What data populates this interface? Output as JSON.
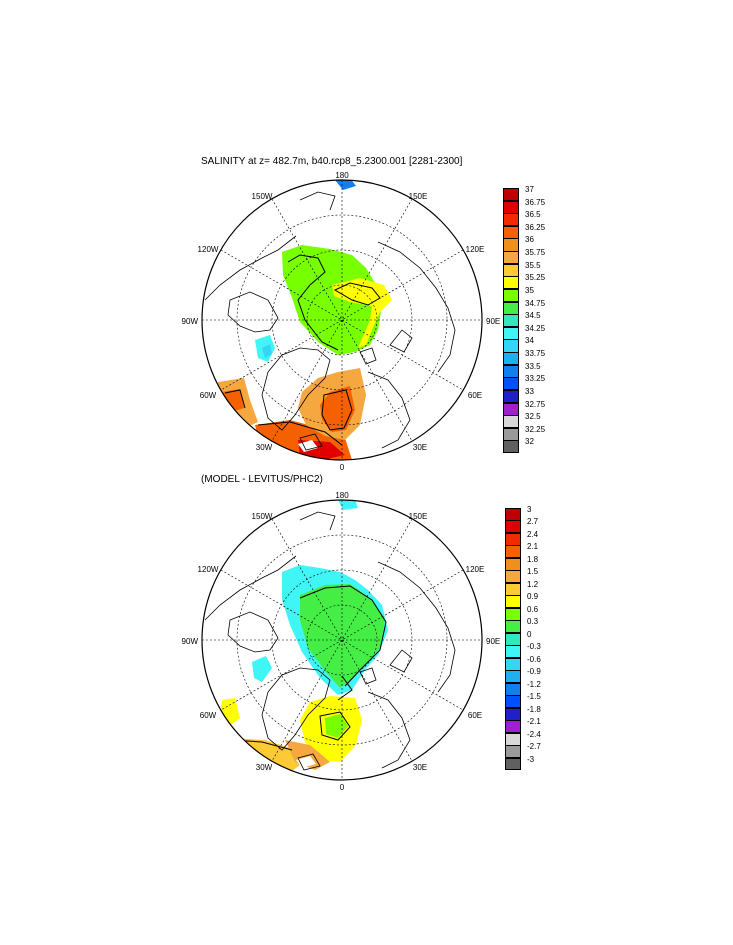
{
  "panels": [
    {
      "title": "SALINITY at z= 482.7m, b40.rcp8_5.2300.001 [2281-2300]",
      "lon_labels": [
        "180",
        "150E",
        "120E",
        "90E",
        "60E",
        "30E",
        "0",
        "30W",
        "60W",
        "90W",
        "120W",
        "150W"
      ],
      "colorbar": {
        "labels": [
          "37",
          "36.75",
          "36.5",
          "36.25",
          "36",
          "35.75",
          "35.5",
          "35.25",
          "35",
          "34.75",
          "34.5",
          "34.25",
          "34",
          "33.75",
          "33.5",
          "33.25",
          "33",
          "32.75",
          "32.5",
          "32.25",
          "32"
        ],
        "colors": [
          "#c00000",
          "#e00000",
          "#f22a00",
          "#f56000",
          "#f0901c",
          "#f5a840",
          "#fdc935",
          "#ffff00",
          "#78ff00",
          "#44ee44",
          "#33e8c0",
          "#40f5f5",
          "#35d5f5",
          "#20b0f0",
          "#1080f0",
          "#0050ff",
          "#2020c8",
          "#9f20d0",
          "#d8d8d8",
          "#9a9a9a",
          "#606060"
        ]
      }
    },
    {
      "title": "(MODEL - LEVITUS/PHC2)",
      "lon_labels": [
        "180",
        "150E",
        "120E",
        "90E",
        "60E",
        "30E",
        "0",
        "30W",
        "60W",
        "90W",
        "120W",
        "150W"
      ],
      "colorbar": {
        "labels": [
          "3",
          "2.7",
          "2.4",
          "2.1",
          "1.8",
          "1.5",
          "1.2",
          "0.9",
          "0.6",
          "0.3",
          "0",
          "-0.3",
          "-0.6",
          "-0.9",
          "-1.2",
          "-1.5",
          "-1.8",
          "-2.1",
          "-2.4",
          "-2.7",
          "-3"
        ],
        "colors": [
          "#c00000",
          "#e00000",
          "#f22a00",
          "#f56000",
          "#f0901c",
          "#f5a840",
          "#fdc935",
          "#ffff00",
          "#78ff00",
          "#44ee44",
          "#33e8c0",
          "#40f5f5",
          "#35d5f5",
          "#20b0f0",
          "#1080f0",
          "#0050ff",
          "#2020c8",
          "#9f20d0",
          "#d8d8d8",
          "#9a9a9a",
          "#606060"
        ]
      }
    }
  ],
  "colors": {
    "land_outline": "#000000",
    "grid_line": "#000000"
  }
}
